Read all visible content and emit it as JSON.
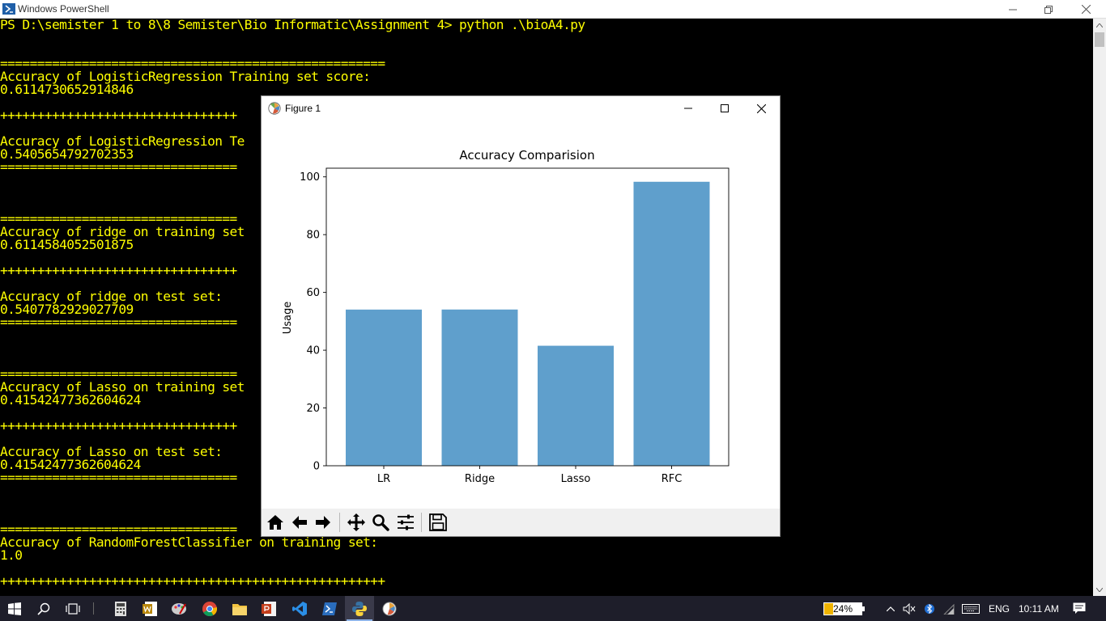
{
  "powershell": {
    "title": "Windows PowerShell",
    "lines": [
      "PS D:\\semister 1 to 8\\8 Semister\\Bio Informatic\\Assignment 4> python .\\bioA4.py",
      "",
      "",
      "====================================================",
      "Accuracy of LogisticRegression Training set score:",
      "0.6114730652914846",
      "",
      "++++++++++++++++++++++++++++++++",
      "",
      "Accuracy of LogisticRegression Te",
      "0.5405654792702353",
      "================================",
      "",
      "",
      "",
      "================================",
      "Accuracy of ridge on training set",
      "0.6114584052501875",
      "",
      "++++++++++++++++++++++++++++++++",
      "",
      "Accuracy of ridge on test set:",
      "0.5407782929027709",
      "================================",
      "",
      "",
      "",
      "================================",
      "Accuracy of Lasso on training set",
      "0.41542477362604624",
      "",
      "++++++++++++++++++++++++++++++++",
      "",
      "Accuracy of Lasso on test set:",
      "0.41542477362604624",
      "================================",
      "",
      "",
      "",
      "================================",
      "Accuracy of RandomForestClassifier on training set:",
      "1.0",
      "",
      "++++++++++++++++++++++++++++++++++++++++++++++++++++"
    ]
  },
  "figure": {
    "title": "Figure 1",
    "toolbar": [
      "home-icon",
      "back-arrow-icon",
      "forward-arrow-icon",
      "pan-icon",
      "zoom-icon",
      "configure-subplots-icon",
      "save-icon"
    ]
  },
  "chart_data": {
    "type": "bar",
    "title": "Accuracy Comparision",
    "xlabel": "",
    "ylabel": "Usage",
    "categories": [
      "LR",
      "Ridge",
      "Lasso",
      "RFC"
    ],
    "values": [
      54.06,
      54.08,
      41.54,
      98.3
    ],
    "ylim": [
      0,
      103
    ],
    "yticks": [
      0,
      20,
      40,
      60,
      80,
      100
    ],
    "bar_color": "#5f9fcc",
    "grid": false,
    "legend": "none"
  },
  "taskbar": {
    "battery_percent": "24%",
    "language": "ENG",
    "time": "10:11 AM",
    "battery_level": 0.24
  },
  "colors": {
    "console_bg": "#000000",
    "console_text": "#ffff00",
    "taskbar_bg": "#1e1e2a"
  }
}
